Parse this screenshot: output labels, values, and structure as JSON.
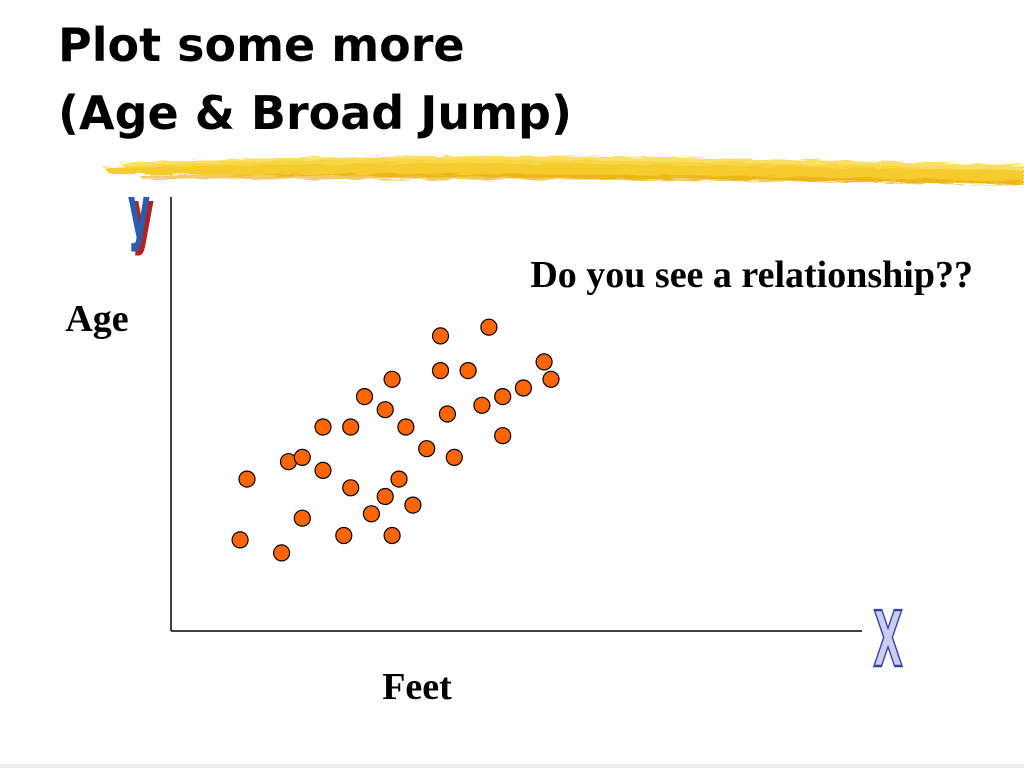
{
  "slide": {
    "title_line_1": "Plot some more",
    "title_line_2": "(Age & Broad Jump)",
    "question": "Do you see a relationship??"
  },
  "colors": {
    "highlighter": "#f5c518",
    "point_fill": "#ff6600",
    "point_stroke": "#000000",
    "y_letter_fill": "#2a5db0",
    "y_letter_shadow": "#b22222",
    "x_letter_fill": "#c9cdf0",
    "x_letter_stroke": "#3a3fa0"
  },
  "chart_data": {
    "type": "scatter",
    "title": "",
    "xlabel": "Feet",
    "ylabel": "Age",
    "axis_letters": {
      "x": "X",
      "y": "y"
    },
    "tick_labels": false,
    "grid": false,
    "legend": "none",
    "xlim": [
      0,
      100
    ],
    "ylim": [
      0,
      100
    ],
    "series": [
      {
        "points": [
          [
            10,
            21
          ],
          [
            11,
            35
          ],
          [
            16,
            18
          ],
          [
            17,
            39
          ],
          [
            19,
            26
          ],
          [
            19,
            40
          ],
          [
            22,
            47
          ],
          [
            22,
            37
          ],
          [
            25,
            22
          ],
          [
            26,
            33
          ],
          [
            26,
            47
          ],
          [
            28,
            54
          ],
          [
            29,
            27
          ],
          [
            31,
            31
          ],
          [
            31,
            51
          ],
          [
            32,
            22
          ],
          [
            32,
            58
          ],
          [
            33,
            35
          ],
          [
            34,
            47
          ],
          [
            35,
            29
          ],
          [
            37,
            42
          ],
          [
            39,
            60
          ],
          [
            39,
            68
          ],
          [
            40,
            50
          ],
          [
            41,
            40
          ],
          [
            43,
            60
          ],
          [
            45,
            52
          ],
          [
            46,
            70
          ],
          [
            48,
            45
          ],
          [
            48,
            54
          ],
          [
            51,
            56
          ],
          [
            54,
            62
          ],
          [
            55,
            58
          ]
        ]
      }
    ]
  }
}
